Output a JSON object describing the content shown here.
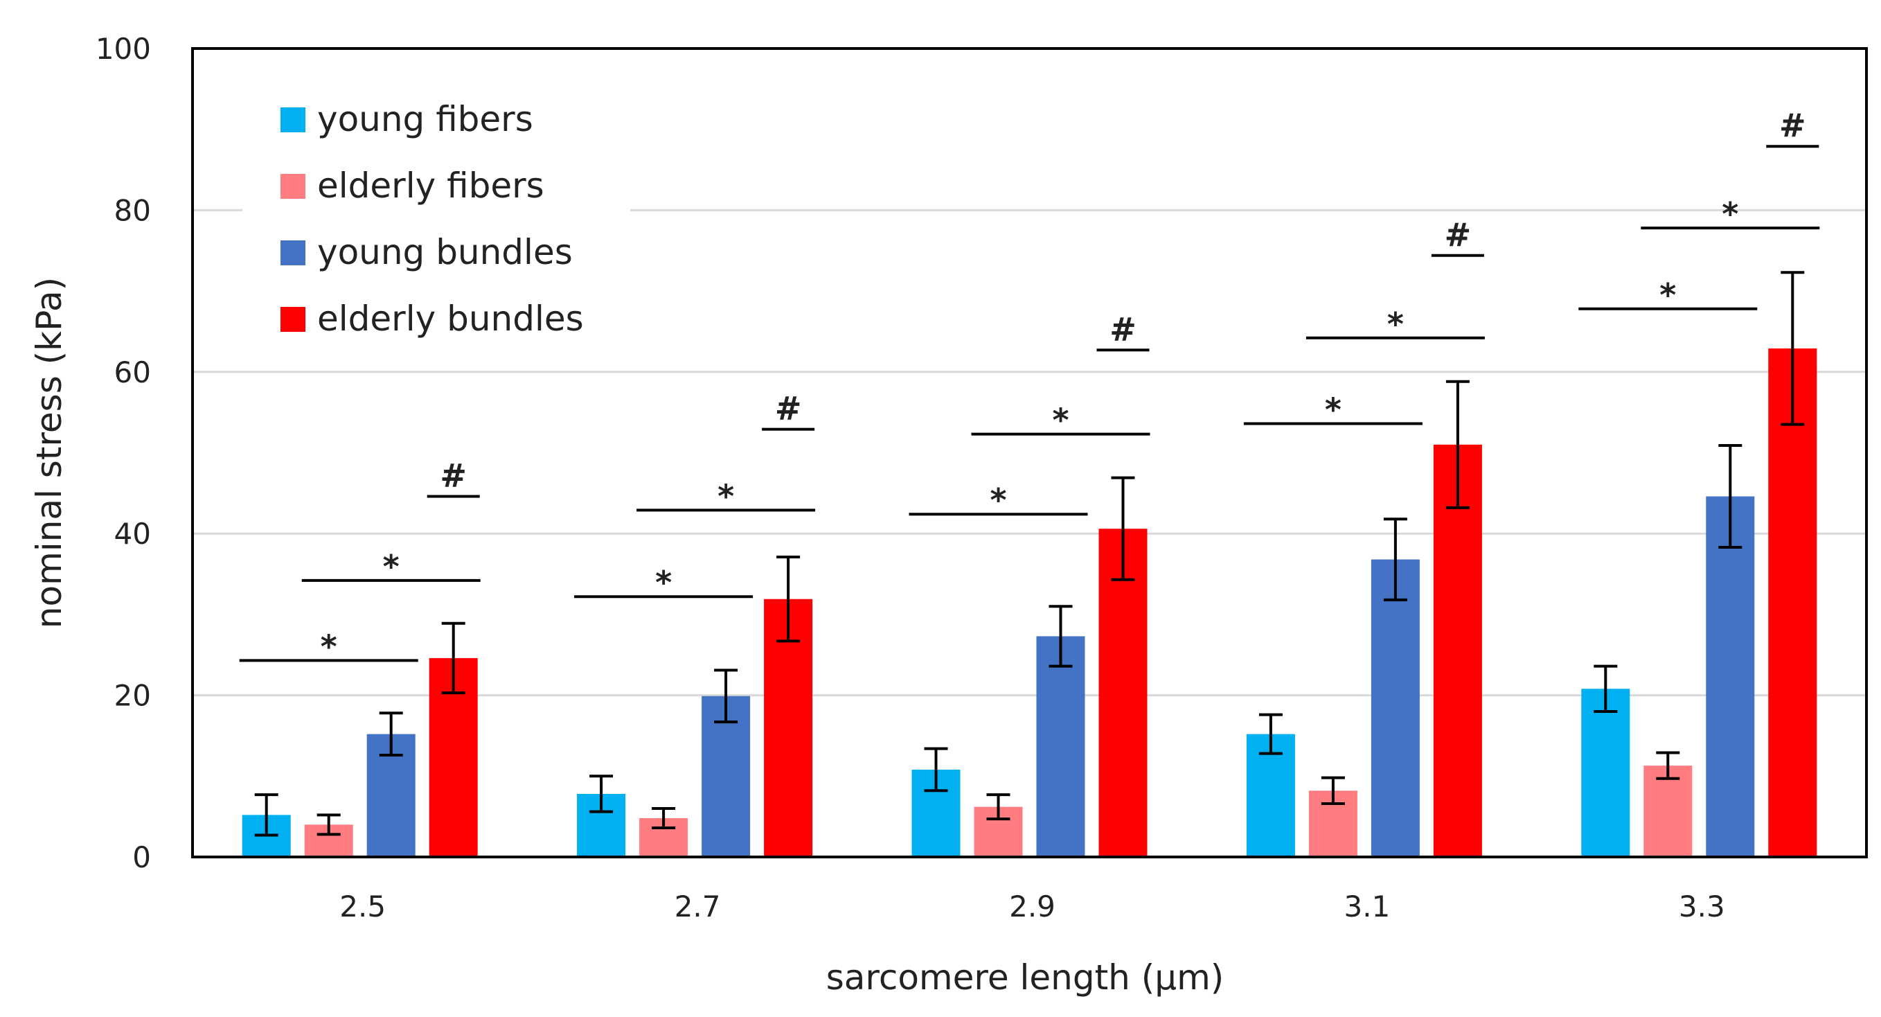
{
  "chart_data": {
    "type": "bar",
    "title": "",
    "xlabel": "sarcomere length (µm)",
    "ylabel": "nominal stress (kPa)",
    "ylim": [
      0,
      100
    ],
    "yticks": [
      "0",
      "20",
      "40",
      "60",
      "80",
      "100"
    ],
    "ytick_values": [
      0,
      20,
      40,
      60,
      80,
      100
    ],
    "categories": [
      "2.5",
      "2.7",
      "2.9",
      "3.1",
      "3.3"
    ],
    "grid": true,
    "legend_position": "top-left",
    "series": [
      {
        "name": "young fibers",
        "color": "#00B0F0",
        "values": [
          5.2,
          7.8,
          10.8,
          15.2,
          20.8
        ],
        "errors": [
          2.5,
          2.2,
          2.6,
          2.4,
          2.8
        ]
      },
      {
        "name": "elderly fibers",
        "color": "#FF7C80",
        "values": [
          4.0,
          4.8,
          6.2,
          8.2,
          11.3
        ],
        "errors": [
          1.2,
          1.2,
          1.5,
          1.6,
          1.6
        ]
      },
      {
        "name": "young bundles",
        "color": "#4472C4",
        "values": [
          15.2,
          19.9,
          27.3,
          36.8,
          44.6
        ],
        "errors": [
          2.6,
          3.2,
          3.7,
          5.0,
          6.3
        ]
      },
      {
        "name": "elderly bundles",
        "color": "#FF0000",
        "values": [
          24.6,
          31.9,
          40.6,
          51.0,
          62.9
        ],
        "errors": [
          4.3,
          5.2,
          6.3,
          7.8,
          9.4
        ]
      }
    ],
    "annotations": [
      {
        "category": 0,
        "from_series": 0,
        "to_series": 2,
        "symbol": "*",
        "y": 24.3
      },
      {
        "category": 0,
        "from_series": 1,
        "to_series": 3,
        "symbol": "*",
        "y": 34.2
      },
      {
        "category": 0,
        "from_series": 3,
        "to_series": 3,
        "symbol": "#",
        "y": 44.6
      },
      {
        "category": 1,
        "from_series": 0,
        "to_series": 2,
        "symbol": "*",
        "y": 32.2
      },
      {
        "category": 1,
        "from_series": 1,
        "to_series": 3,
        "symbol": "*",
        "y": 42.9
      },
      {
        "category": 1,
        "from_series": 3,
        "to_series": 3,
        "symbol": "#",
        "y": 52.9
      },
      {
        "category": 2,
        "from_series": 0,
        "to_series": 2,
        "symbol": "*",
        "y": 42.4
      },
      {
        "category": 2,
        "from_series": 1,
        "to_series": 3,
        "symbol": "*",
        "y": 52.3
      },
      {
        "category": 2,
        "from_series": 3,
        "to_series": 3,
        "symbol": "#",
        "y": 62.7
      },
      {
        "category": 3,
        "from_series": 0,
        "to_series": 2,
        "symbol": "*",
        "y": 53.6
      },
      {
        "category": 3,
        "from_series": 1,
        "to_series": 3,
        "symbol": "*",
        "y": 64.2
      },
      {
        "category": 3,
        "from_series": 3,
        "to_series": 3,
        "symbol": "#",
        "y": 74.4
      },
      {
        "category": 4,
        "from_series": 0,
        "to_series": 2,
        "symbol": "*",
        "y": 67.8
      },
      {
        "category": 4,
        "from_series": 1,
        "to_series": 3,
        "symbol": "*",
        "y": 77.8
      },
      {
        "category": 4,
        "from_series": 3,
        "to_series": 3,
        "symbol": "#",
        "y": 87.9
      }
    ]
  }
}
